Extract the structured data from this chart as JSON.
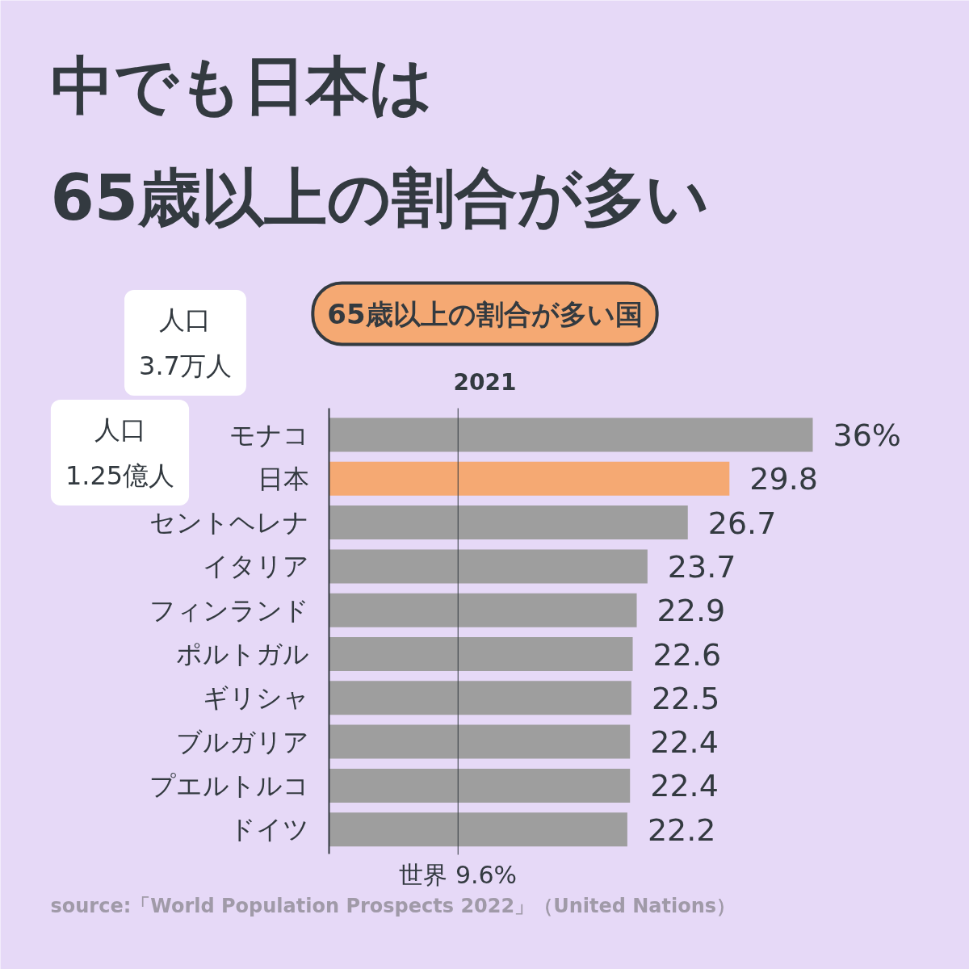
{
  "chart_data": {
    "type": "bar",
    "orientation": "horizontal",
    "title": "中でも日本は\n65歳以上の割合が多い",
    "subtitle": "65歳以上の割合が多い国",
    "categories": [
      "モナコ",
      "日本",
      "セントヘレナ",
      "イタリア",
      "フィンランド",
      "ポルトガル",
      "ギリシャ",
      "ブルガリア",
      "プエルトルコ",
      "ドイツ"
    ],
    "values": [
      36,
      29.8,
      26.7,
      23.7,
      22.9,
      22.6,
      22.5,
      22.4,
      22.4,
      22.2
    ],
    "colors": [
      "#9e9e9e",
      "#f5a973",
      "#9e9e9e",
      "#9e9e9e",
      "#9e9e9e",
      "#9e9e9e",
      "#9e9e9e",
      "#9e9e9e",
      "#9e9e9e",
      "#9e9e9e"
    ],
    "value_labels": [
      "36%",
      "29.8",
      "26.7",
      "23.7",
      "22.9",
      "22.6",
      "22.5",
      "22.4",
      "22.4",
      "22.2"
    ],
    "ref_lines": [
      {
        "axis": "x",
        "value": 9.6,
        "label": "世界 9.6%",
        "color": "#333a40"
      }
    ],
    "annotations": [
      "2021",
      "人口\n3.7万人",
      "人口\n1.25億人",
      "source:「World Population Prospects 2022」（United Nations）"
    ]
  }
}
